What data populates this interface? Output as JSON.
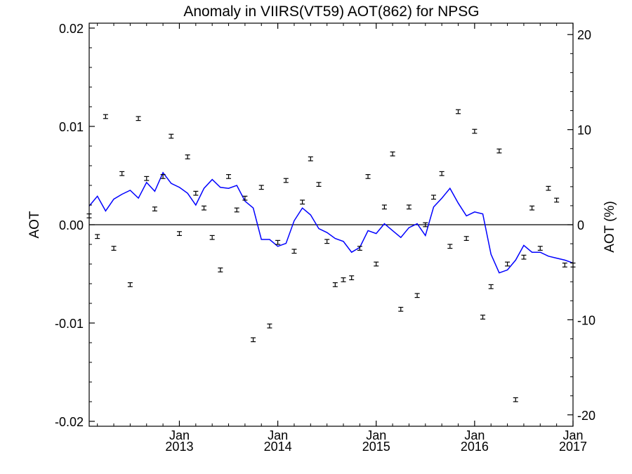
{
  "chart_data": {
    "type": "scatter",
    "title": "Anomaly in VIIRS(VT59) AOT(862) for NPSG",
    "ylabel_left": "AOT",
    "ylabel_right": "AOT (%)",
    "x_range": [
      "2012-02",
      "2017-01"
    ],
    "y_left_range": [
      -0.0205,
      0.0205
    ],
    "y_right_range": [
      -21.2,
      21.2
    ],
    "grid": false,
    "zero_line": true,
    "x_ticks": [
      {
        "month": "Jan",
        "year": "2013"
      },
      {
        "month": "Jan",
        "year": "2014"
      },
      {
        "month": "Jan",
        "year": "2015"
      },
      {
        "month": "Jan",
        "year": "2016"
      },
      {
        "month": "Jan",
        "year": "2017"
      }
    ],
    "y_left_ticks": [
      "0.02",
      "0.01",
      "0.00",
      "-0.01",
      "-0.02"
    ],
    "y_right_ticks": [
      "20",
      "10",
      "0",
      "-10",
      "-20"
    ],
    "colors": {
      "points": "#000000",
      "trend": "#0000ff",
      "zero_line": "#000000"
    },
    "series": [
      {
        "type": "scatter_errorbar",
        "x": [
          "2012-02",
          "2012-03",
          "2012-04",
          "2012-05",
          "2012-06",
          "2012-07",
          "2012-08",
          "2012-09",
          "2012-10",
          "2012-11",
          "2012-12",
          "2013-01",
          "2013-02",
          "2013-03",
          "2013-04",
          "2013-05",
          "2013-06",
          "2013-07",
          "2013-08",
          "2013-09",
          "2013-10",
          "2013-11",
          "2013-12",
          "2014-01",
          "2014-02",
          "2014-03",
          "2014-04",
          "2014-05",
          "2014-06",
          "2014-07",
          "2014-08",
          "2014-09",
          "2014-10",
          "2014-11",
          "2014-12",
          "2015-01",
          "2015-02",
          "2015-03",
          "2015-04",
          "2015-05",
          "2015-06",
          "2015-07",
          "2015-08",
          "2015-09",
          "2015-10",
          "2015-11",
          "2015-12",
          "2016-01",
          "2016-02",
          "2016-03",
          "2016-04",
          "2016-05",
          "2016-06",
          "2016-07",
          "2016-08",
          "2016-09",
          "2016-10",
          "2016-11",
          "2016-12",
          "2017-01"
        ],
        "values": [
          0.0009,
          -0.0012,
          0.011,
          -0.0024,
          0.0052,
          -0.0061,
          0.0108,
          0.0047,
          0.0016,
          0.0049,
          0.009,
          -0.0009,
          0.0069,
          0.0032,
          0.0017,
          -0.0013,
          -0.0046,
          0.0049,
          0.0015,
          0.0027,
          -0.0117,
          0.0038,
          -0.0103,
          -0.0018,
          0.0045,
          -0.0027,
          0.0023,
          0.0067,
          0.0041,
          -0.0017,
          -0.0061,
          -0.0056,
          -0.0054,
          -0.0024,
          0.0049,
          -0.004,
          0.0018,
          0.0072,
          -0.0086,
          0.0018,
          -0.0072,
          0.0,
          0.0028,
          0.0052,
          -0.0022,
          0.0115,
          -0.0014,
          0.0095,
          -0.0094,
          -0.0063,
          0.0075,
          -0.004,
          -0.0178,
          -0.0033,
          0.0017,
          -0.0024,
          0.0037,
          0.0025,
          -0.0041,
          -0.0041
        ],
        "error": 0.0002
      },
      {
        "type": "line",
        "x": [
          "2012-02",
          "2012-03",
          "2012-04",
          "2012-05",
          "2012-06",
          "2012-07",
          "2012-08",
          "2012-09",
          "2012-10",
          "2012-11",
          "2012-12",
          "2013-01",
          "2013-02",
          "2013-03",
          "2013-04",
          "2013-05",
          "2013-06",
          "2013-07",
          "2013-08",
          "2013-09",
          "2013-10",
          "2013-11",
          "2013-12",
          "2014-01",
          "2014-02",
          "2014-03",
          "2014-04",
          "2014-05",
          "2014-06",
          "2014-07",
          "2014-08",
          "2014-09",
          "2014-10",
          "2014-11",
          "2014-12",
          "2015-01",
          "2015-02",
          "2015-03",
          "2015-04",
          "2015-05",
          "2015-06",
          "2015-07",
          "2015-08",
          "2015-09",
          "2015-10",
          "2015-11",
          "2015-12",
          "2016-01",
          "2016-02",
          "2016-03",
          "2016-04",
          "2016-05",
          "2016-06",
          "2016-07",
          "2016-08",
          "2016-09",
          "2016-10",
          "2016-11",
          "2016-12",
          "2017-01"
        ],
        "values": [
          0.0019,
          0.0029,
          0.0014,
          0.0026,
          0.0031,
          0.0035,
          0.0027,
          0.0043,
          0.0034,
          0.0053,
          0.0042,
          0.0038,
          0.0032,
          0.002,
          0.0037,
          0.0046,
          0.0038,
          0.0037,
          0.004,
          0.0024,
          0.0017,
          -0.0015,
          -0.0015,
          -0.0022,
          -0.0019,
          0.0004,
          0.0017,
          0.001,
          -0.0004,
          -0.0008,
          -0.0014,
          -0.0017,
          -0.0028,
          -0.0023,
          -0.0006,
          -0.0009,
          0.0001,
          -0.0006,
          -0.0013,
          -0.0003,
          0.0001,
          -0.0011,
          0.0018,
          0.0027,
          0.0037,
          0.0022,
          0.0009,
          0.0013,
          0.0011,
          -0.003,
          -0.0049,
          -0.0046,
          -0.0036,
          -0.0021,
          -0.0028,
          -0.0028,
          -0.0032,
          -0.0034,
          -0.0036,
          -0.0039
        ]
      }
    ]
  }
}
